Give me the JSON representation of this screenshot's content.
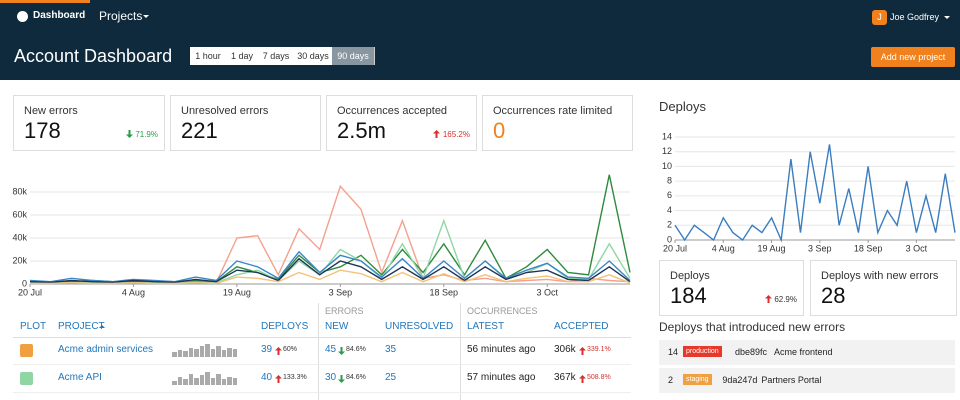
{
  "nav": {
    "dashboard": "Dashboard",
    "projects": "Projects",
    "user_initial": "J",
    "user": "Joe Godfrey"
  },
  "header": {
    "title": "Account Dashboard",
    "ranges": [
      "1 hour",
      "1 day",
      "7 days",
      "30 days",
      "90 days"
    ],
    "active_range": 4,
    "add_button": "Add new project"
  },
  "stats": [
    {
      "label": "New errors",
      "value": 178,
      "change": "71.9%"
    },
    {
      "label": "Unresolved errors",
      "value": 221
    },
    {
      "label": "Occurrences accepted",
      "value": "2.5m",
      "change": "165.2%"
    },
    {
      "label": "Occurrences rate limited",
      "value": 0
    }
  ],
  "chart_data": [
    {
      "type": "line",
      "categories": [
        "20 Jul",
        null,
        null,
        null,
        null,
        "4 Aug",
        null,
        null,
        null,
        null,
        "19 Aug",
        null,
        null,
        null,
        null,
        "3 Sep",
        null,
        null,
        null,
        null,
        "18 Sep",
        null,
        null,
        null,
        null,
        "3 Oct",
        null,
        null,
        null,
        null
      ],
      "ylim": [
        0,
        100000
      ],
      "yticks": [
        0,
        {
          "value": 20000,
          "label": "20k"
        },
        {
          "value": 40000,
          "label": "40k"
        },
        {
          "value": 60000,
          "label": "60k"
        },
        {
          "value": 80000,
          "label": "80k"
        }
      ],
      "grid": true,
      "series": [
        {
          "color": "#f4a08c",
          "values": [
            1000,
            1000,
            1500,
            1000,
            1000,
            1500,
            1000,
            1000,
            2000,
            1000,
            40000,
            42000,
            8000,
            48000,
            30000,
            85000,
            65000,
            10000,
            55000,
            5000,
            8000,
            3000,
            5000,
            2000,
            3000,
            4000,
            2000,
            5000,
            3000,
            2000
          ]
        },
        {
          "color": "#2e8b3e",
          "values": [
            2000,
            1500,
            2000,
            3000,
            2000,
            2000,
            2500,
            2000,
            3000,
            2000,
            15000,
            10000,
            4000,
            25000,
            10000,
            15000,
            25000,
            8000,
            30000,
            10000,
            35000,
            8000,
            38000,
            5000,
            15000,
            30000,
            10000,
            8000,
            95000,
            10000
          ]
        },
        {
          "color": "#8fd6a4",
          "values": [
            1000,
            1000,
            1000,
            1500,
            1000,
            1000,
            1000,
            1000,
            1500,
            1000,
            8000,
            12000,
            3000,
            20000,
            8000,
            30000,
            20000,
            5000,
            35000,
            5000,
            55000,
            5000,
            20000,
            4000,
            10000,
            18000,
            5000,
            4000,
            35000,
            5000
          ]
        },
        {
          "color": "#3b86c6",
          "values": [
            3000,
            2000,
            5000,
            3000,
            2000,
            4000,
            3000,
            2000,
            6000,
            3000,
            20000,
            15000,
            5000,
            28000,
            10000,
            25000,
            20000,
            6000,
            22000,
            5000,
            20000,
            5000,
            20000,
            5000,
            12000,
            18000,
            6000,
            5000,
            20000,
            3000
          ]
        },
        {
          "color": "#1d3557",
          "values": [
            2000,
            1500,
            3000,
            2000,
            1500,
            3000,
            2000,
            1500,
            4000,
            2000,
            12000,
            10000,
            3000,
            22000,
            8000,
            20000,
            15000,
            4000,
            15000,
            4000,
            15000,
            3000,
            15000,
            4000,
            10000,
            12000,
            4000,
            3000,
            15000,
            2000
          ]
        },
        {
          "color": "#f5c27a",
          "values": [
            500,
            500,
            1000,
            500,
            500,
            1000,
            500,
            500,
            1000,
            500,
            6000,
            5000,
            2000,
            10000,
            4000,
            12000,
            9000,
            2000,
            10000,
            2000,
            9000,
            2000,
            8000,
            2000,
            5000,
            7000,
            2000,
            2000,
            8000,
            1000
          ]
        }
      ]
    },
    {
      "type": "line",
      "title": "Deploys",
      "categories": [
        "20 Jul",
        null,
        null,
        null,
        null,
        "4 Aug",
        null,
        null,
        null,
        null,
        "19 Aug",
        null,
        null,
        null,
        null,
        "3 Sep",
        null,
        null,
        null,
        null,
        "18 Sep",
        null,
        null,
        null,
        null,
        "3 Oct",
        null,
        null,
        null,
        null
      ],
      "ylim": [
        0,
        14
      ],
      "yticks": [
        0,
        2,
        4,
        6,
        8,
        10,
        12,
        14
      ],
      "grid": true,
      "series": [
        {
          "color": "#3b7dbf",
          "values": [
            2,
            0,
            2,
            1,
            0,
            3,
            1,
            0,
            2,
            1,
            3,
            0,
            11,
            1,
            12,
            5,
            13,
            2,
            7,
            1,
            10,
            1,
            4,
            2,
            8,
            1,
            6,
            1,
            9,
            1
          ]
        }
      ]
    }
  ],
  "table": {
    "groups": [
      "ERRORS",
      "OCCURRENCES"
    ],
    "headers": [
      "PLOT",
      "PROJECT",
      "DEPLOYS",
      "NEW",
      "UNRESOLVED",
      "LATEST",
      "ACCEPTED"
    ],
    "rows": [
      {
        "plot_color": "#f0a040",
        "project": "Acme admin services",
        "spark": [
          5,
          8,
          6,
          10,
          9,
          12,
          14,
          9,
          12,
          8,
          10,
          9
        ],
        "deploys": 39,
        "deploys_change": "60%",
        "new": 45,
        "new_change": "84.6%",
        "unresolved": 35,
        "latest": "56 minutes ago",
        "accepted": "306k",
        "accepted_change": "339.1%"
      },
      {
        "plot_color": "#8fd6a4",
        "project": "Acme API",
        "spark": [
          4,
          9,
          6,
          12,
          8,
          11,
          14,
          8,
          12,
          7,
          9,
          8
        ],
        "deploys": 40,
        "deploys_change": "133.3%",
        "new": 30,
        "new_change": "84.6%",
        "unresolved": 25,
        "latest": "57 minutes ago",
        "accepted": "367k",
        "accepted_change": "508.8%"
      }
    ]
  },
  "deploys": {
    "cards": [
      {
        "label": "Deploys",
        "value": 184,
        "change": "62.9%"
      },
      {
        "label": "Deploys with new errors",
        "value": 28
      }
    ],
    "list_title": "Deploys that introduced new errors",
    "list": [
      {
        "count": 14,
        "env": "production",
        "env_color": "#e8382a",
        "commit": "dbe89fc",
        "project": "Acme frontend"
      },
      {
        "count": 2,
        "env": "staging",
        "env_color": "#f0a040",
        "commit": "9da247d",
        "project": "Partners Portal"
      }
    ]
  }
}
